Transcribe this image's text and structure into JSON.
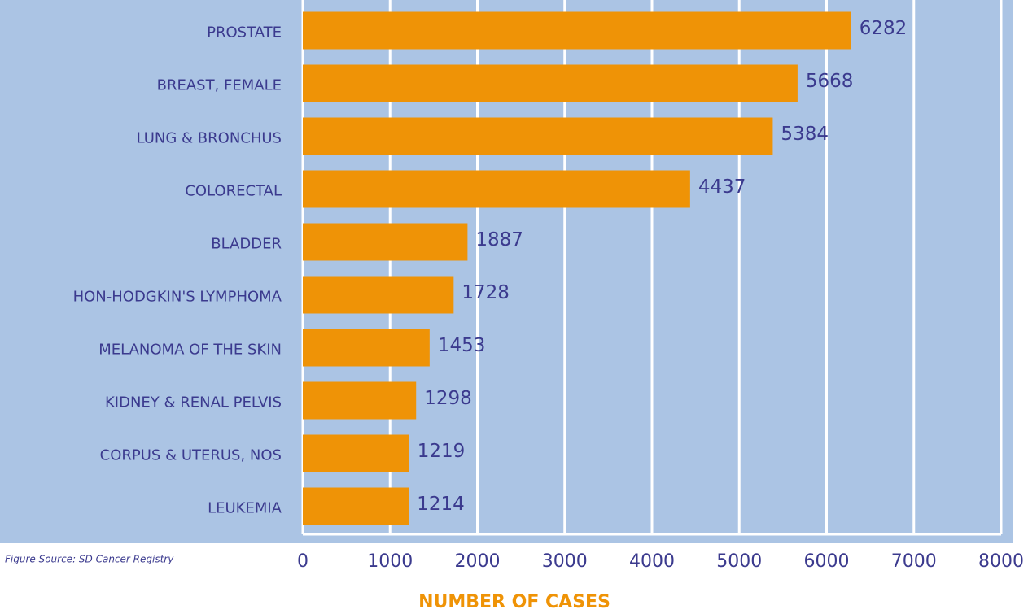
{
  "chart_data": {
    "type": "bar",
    "orientation": "horizontal",
    "categories": [
      "PROSTATE",
      "BREAST, FEMALE",
      "LUNG & BRONCHUS",
      "COLORECTAL",
      "BLADDER",
      "HON-HODGKIN'S LYMPHOMA",
      "MELANOMA OF THE SKIN",
      "KIDNEY & RENAL PELVIS",
      "CORPUS & UTERUS, NOS",
      "LEUKEMIA"
    ],
    "values": [
      6282,
      5668,
      5384,
      4437,
      1887,
      1728,
      1453,
      1298,
      1219,
      1214
    ],
    "color": "#ef9306",
    "xlabel": "NUMBER OF CASES",
    "source": "Figure Source: SD Cancer Registry",
    "xlim": [
      0,
      8000
    ],
    "xticks": [
      0,
      1000,
      2000,
      3000,
      4000,
      5000,
      6000,
      7000,
      8000
    ],
    "grid": true
  }
}
